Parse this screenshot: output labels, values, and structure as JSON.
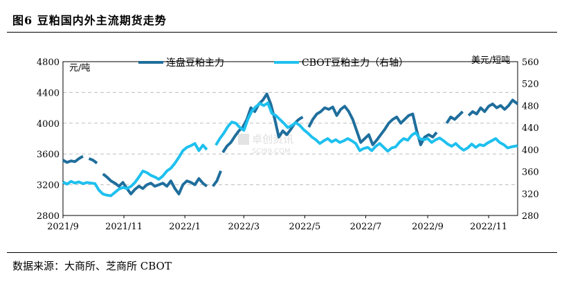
{
  "title": "图6  豆粕国内外主流期货走势",
  "source": "数据来源：大商所、芝商所 CBOT",
  "watermark": "卓创资讯 SCI99.COM",
  "chart_data": {
    "type": "line",
    "left_unit": "元/吨",
    "right_unit": "美元/短吨",
    "x_range": [
      "2021-09-01",
      "2022-11-30"
    ],
    "x_ticks": [
      "2021/9",
      "2021/11",
      "2022/1",
      "2022/3",
      "2022/5",
      "2022/7",
      "2022/9",
      "2022/11"
    ],
    "x_tick_dates": [
      "2021-09-01",
      "2021-11-01",
      "2022-01-01",
      "2022-03-01",
      "2022-05-01",
      "2022-07-01",
      "2022-09-01",
      "2022-11-01"
    ],
    "y_left": {
      "min": 2800,
      "max": 4800,
      "ticks": [
        2800,
        3200,
        3600,
        4000,
        4400,
        4800
      ]
    },
    "y_right": {
      "min": 280,
      "max": 560,
      "ticks": [
        280,
        320,
        360,
        400,
        440,
        480,
        520,
        560
      ]
    },
    "grid": "horizontal-dashed",
    "legend_position": "top",
    "series": [
      {
        "name": "连盘豆粕主力",
        "axis": "left",
        "color": "#1f6e9c",
        "points": [
          [
            "2021-09-01",
            3520
          ],
          [
            "2021-09-05",
            3490
          ],
          [
            "2021-09-09",
            3510
          ],
          [
            "2021-09-13",
            3500
          ],
          [
            "2021-09-17",
            3540
          ],
          [
            "2021-09-21",
            3570
          ],
          null,
          [
            "2021-09-27",
            3540
          ],
          [
            "2021-10-01",
            3520
          ],
          [
            "2021-10-05",
            3480
          ],
          null,
          [
            "2021-10-11",
            3340
          ],
          [
            "2021-10-15",
            3300
          ],
          [
            "2021-10-19",
            3250
          ],
          [
            "2021-10-23",
            3220
          ],
          [
            "2021-10-27",
            3180
          ],
          [
            "2021-10-31",
            3230
          ],
          [
            "2021-11-04",
            3150
          ],
          [
            "2021-11-08",
            3080
          ],
          [
            "2021-11-12",
            3140
          ],
          [
            "2021-11-16",
            3180
          ],
          [
            "2021-11-20",
            3150
          ],
          [
            "2021-11-24",
            3200
          ],
          [
            "2021-11-28",
            3220
          ],
          [
            "2021-12-02",
            3180
          ],
          [
            "2021-12-06",
            3200
          ],
          [
            "2021-12-10",
            3220
          ],
          [
            "2021-12-14",
            3180
          ],
          [
            "2021-12-18",
            3250
          ],
          [
            "2021-12-22",
            3150
          ],
          [
            "2021-12-26",
            3080
          ],
          [
            "2021-12-30",
            3200
          ],
          [
            "2022-01-03",
            3250
          ],
          [
            "2022-01-07",
            3230
          ],
          [
            "2022-01-11",
            3200
          ],
          [
            "2022-01-15",
            3280
          ],
          [
            "2022-01-19",
            3220
          ],
          [
            "2022-01-23",
            3180
          ],
          null,
          [
            "2022-01-29",
            3180
          ],
          [
            "2022-02-02",
            3250
          ],
          [
            "2022-02-06",
            3380
          ],
          null,
          [
            "2022-02-08",
            3620
          ],
          [
            "2022-02-12",
            3700
          ],
          [
            "2022-02-16",
            3750
          ],
          [
            "2022-02-20",
            3830
          ],
          [
            "2022-02-24",
            3900
          ],
          [
            "2022-02-28",
            3950
          ],
          [
            "2022-03-04",
            4050
          ],
          [
            "2022-03-08",
            4200
          ],
          [
            "2022-03-12",
            4150
          ],
          [
            "2022-03-16",
            4250
          ],
          [
            "2022-03-20",
            4300
          ],
          [
            "2022-03-24",
            4380
          ],
          [
            "2022-03-28",
            4250
          ],
          [
            "2022-04-01",
            4050
          ],
          [
            "2022-04-05",
            3820
          ],
          [
            "2022-04-09",
            3900
          ],
          [
            "2022-04-13",
            3850
          ],
          [
            "2022-04-17",
            3920
          ],
          [
            "2022-04-21",
            4000
          ],
          [
            "2022-04-25",
            4050
          ],
          [
            "2022-04-29",
            4080
          ],
          null,
          [
            "2022-05-05",
            3950
          ],
          [
            "2022-05-09",
            4050
          ],
          [
            "2022-05-13",
            4120
          ],
          [
            "2022-05-17",
            4150
          ],
          [
            "2022-05-21",
            4200
          ],
          [
            "2022-05-25",
            4180
          ],
          [
            "2022-05-29",
            4210
          ],
          [
            "2022-06-02",
            4100
          ],
          [
            "2022-06-06",
            4180
          ],
          [
            "2022-06-10",
            4220
          ],
          [
            "2022-06-14",
            4150
          ],
          [
            "2022-06-18",
            4050
          ],
          [
            "2022-06-22",
            3900
          ],
          [
            "2022-06-26",
            3750
          ],
          [
            "2022-06-30",
            3800
          ],
          [
            "2022-07-04",
            3850
          ],
          [
            "2022-07-08",
            3720
          ],
          [
            "2022-07-12",
            3780
          ],
          [
            "2022-07-16",
            3850
          ],
          [
            "2022-07-20",
            3920
          ],
          [
            "2022-07-24",
            4000
          ],
          [
            "2022-07-28",
            4050
          ],
          [
            "2022-08-01",
            4080
          ],
          [
            "2022-08-05",
            4000
          ],
          [
            "2022-08-09",
            4050
          ],
          [
            "2022-08-13",
            4100
          ],
          [
            "2022-08-17",
            4120
          ],
          [
            "2022-08-21",
            3900
          ],
          [
            "2022-08-25",
            3720
          ],
          [
            "2022-08-29",
            3820
          ],
          [
            "2022-09-02",
            3850
          ],
          [
            "2022-09-06",
            3820
          ],
          [
            "2022-09-10",
            3880
          ],
          null,
          [
            "2022-09-20",
            4000
          ],
          [
            "2022-09-24",
            4080
          ],
          [
            "2022-09-28",
            4050
          ],
          [
            "2022-10-02",
            4100
          ],
          [
            "2022-10-06",
            4150
          ],
          null,
          [
            "2022-10-12",
            4100
          ],
          [
            "2022-10-16",
            4150
          ],
          [
            "2022-10-20",
            4120
          ],
          [
            "2022-10-24",
            4200
          ],
          [
            "2022-10-28",
            4150
          ],
          [
            "2022-11-01",
            4220
          ],
          [
            "2022-11-05",
            4250
          ],
          [
            "2022-11-09",
            4200
          ],
          [
            "2022-11-13",
            4230
          ],
          [
            "2022-11-17",
            4180
          ],
          [
            "2022-11-21",
            4230
          ],
          [
            "2022-11-25",
            4300
          ],
          [
            "2022-11-30",
            4250
          ]
        ]
      },
      {
        "name": "CBOT豆粕主力（右轴）",
        "axis": "right",
        "color": "#1ec0ee",
        "points": [
          [
            "2021-09-01",
            341
          ],
          [
            "2021-09-05",
            337
          ],
          [
            "2021-09-09",
            342
          ],
          [
            "2021-09-13",
            339
          ],
          [
            "2021-09-17",
            341
          ],
          [
            "2021-09-21",
            338
          ],
          [
            "2021-09-25",
            340
          ],
          [
            "2021-09-29",
            339
          ],
          [
            "2021-10-03",
            338
          ],
          [
            "2021-10-07",
            326
          ],
          [
            "2021-10-11",
            319
          ],
          [
            "2021-10-15",
            317
          ],
          [
            "2021-10-19",
            316
          ],
          [
            "2021-10-23",
            322
          ],
          [
            "2021-10-27",
            328
          ],
          [
            "2021-10-31",
            331
          ],
          [
            "2021-11-04",
            329
          ],
          [
            "2021-11-08",
            333
          ],
          [
            "2021-11-12",
            340
          ],
          [
            "2021-11-16",
            350
          ],
          [
            "2021-11-20",
            361
          ],
          [
            "2021-11-24",
            358
          ],
          [
            "2021-11-28",
            353
          ],
          [
            "2021-12-02",
            350
          ],
          [
            "2021-12-06",
            346
          ],
          [
            "2021-12-10",
            352
          ],
          [
            "2021-12-14",
            361
          ],
          [
            "2021-12-18",
            366
          ],
          [
            "2021-12-22",
            375
          ],
          [
            "2021-12-26",
            386
          ],
          [
            "2021-12-30",
            398
          ],
          [
            "2022-01-03",
            404
          ],
          [
            "2022-01-07",
            407
          ],
          [
            "2022-01-11",
            411
          ],
          [
            "2022-01-15",
            398
          ],
          [
            "2022-01-19",
            408
          ],
          [
            "2022-01-23",
            400
          ],
          null,
          [
            "2022-02-01",
            408
          ],
          [
            "2022-02-05",
            420
          ],
          [
            "2022-02-09",
            430
          ],
          [
            "2022-02-13",
            442
          ],
          [
            "2022-02-17",
            450
          ],
          [
            "2022-02-21",
            448
          ],
          [
            "2022-02-25",
            440
          ],
          [
            "2022-03-01",
            435
          ],
          [
            "2022-03-05",
            455
          ],
          [
            "2022-03-09",
            470
          ],
          [
            "2022-03-13",
            478
          ],
          [
            "2022-03-17",
            484
          ],
          [
            "2022-03-21",
            480
          ],
          [
            "2022-03-25",
            485
          ],
          [
            "2022-03-29",
            466
          ],
          [
            "2022-04-02",
            462
          ],
          [
            "2022-04-06",
            455
          ],
          [
            "2022-04-10",
            448
          ],
          [
            "2022-04-14",
            440
          ],
          [
            "2022-04-18",
            444
          ],
          [
            "2022-04-22",
            449
          ],
          [
            "2022-04-26",
            444
          ],
          [
            "2022-04-30",
            436
          ],
          [
            "2022-05-04",
            430
          ],
          [
            "2022-05-08",
            423
          ],
          [
            "2022-05-12",
            418
          ],
          [
            "2022-05-16",
            411
          ],
          [
            "2022-05-20",
            416
          ],
          [
            "2022-05-24",
            420
          ],
          [
            "2022-05-28",
            414
          ],
          [
            "2022-06-01",
            418
          ],
          [
            "2022-06-05",
            413
          ],
          [
            "2022-06-09",
            416
          ],
          [
            "2022-06-13",
            420
          ],
          [
            "2022-06-17",
            416
          ],
          [
            "2022-06-21",
            411
          ],
          [
            "2022-06-25",
            398
          ],
          [
            "2022-06-29",
            402
          ],
          [
            "2022-07-03",
            404
          ],
          [
            "2022-07-07",
            398
          ],
          [
            "2022-07-11",
            406
          ],
          [
            "2022-07-15",
            411
          ],
          [
            "2022-07-19",
            404
          ],
          [
            "2022-07-23",
            397
          ],
          [
            "2022-07-27",
            403
          ],
          [
            "2022-07-31",
            405
          ],
          [
            "2022-08-04",
            414
          ],
          [
            "2022-08-08",
            420
          ],
          [
            "2022-08-12",
            417
          ],
          [
            "2022-08-16",
            426
          ],
          [
            "2022-08-20",
            431
          ],
          [
            "2022-08-24",
            420
          ],
          [
            "2022-08-28",
            418
          ],
          [
            "2022-09-01",
            420
          ],
          [
            "2022-09-05",
            413
          ],
          [
            "2022-09-09",
            418
          ],
          [
            "2022-09-13",
            421
          ],
          [
            "2022-09-17",
            416
          ],
          [
            "2022-09-21",
            410
          ],
          [
            "2022-09-25",
            406
          ],
          [
            "2022-09-29",
            411
          ],
          [
            "2022-10-03",
            404
          ],
          [
            "2022-10-07",
            399
          ],
          [
            "2022-10-11",
            403
          ],
          [
            "2022-10-15",
            410
          ],
          [
            "2022-10-19",
            404
          ],
          [
            "2022-10-23",
            409
          ],
          [
            "2022-10-27",
            407
          ],
          [
            "2022-10-31",
            412
          ],
          [
            "2022-11-04",
            416
          ],
          [
            "2022-11-08",
            420
          ],
          [
            "2022-11-12",
            413
          ],
          [
            "2022-11-16",
            409
          ],
          [
            "2022-11-20",
            403
          ],
          [
            "2022-11-24",
            405
          ],
          [
            "2022-11-30",
            407
          ]
        ]
      }
    ]
  }
}
